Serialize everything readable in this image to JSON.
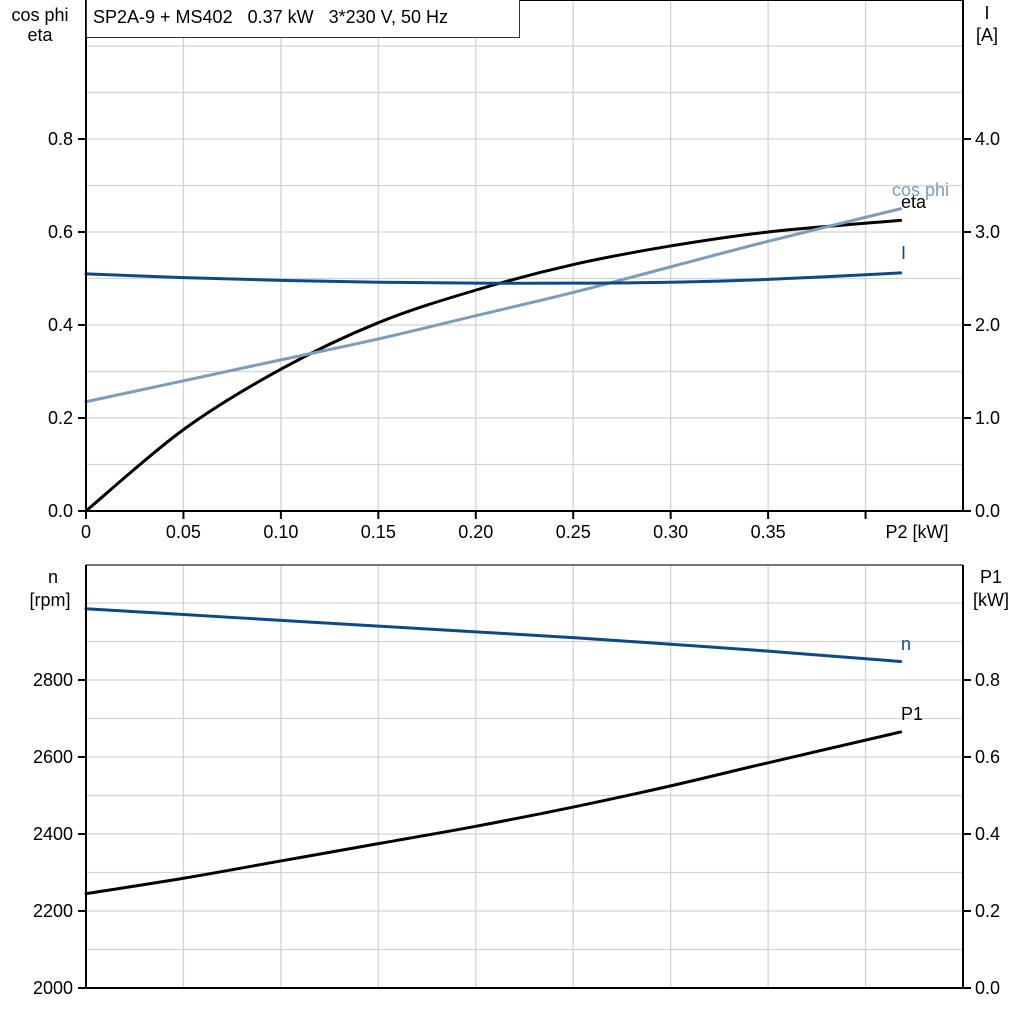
{
  "title": "SP2A-9 + MS402   0.37 kW   3*230 V, 50 Hz",
  "top_chart": {
    "left_axis_label_line1": "cos phi",
    "left_axis_label_line2": "eta",
    "right_axis_label_line1": "I",
    "right_axis_label_line2": "[A]",
    "x_axis_label": "P2 [kW]",
    "x_ticks": [
      "0",
      "0.05",
      "0.10",
      "0.15",
      "0.20",
      "0.25",
      "0.30",
      "0.35"
    ],
    "left_ticks": [
      "0.0",
      "0.2",
      "0.4",
      "0.6",
      "0.8"
    ],
    "right_ticks": [
      "0.0",
      "1.0",
      "2.0",
      "3.0",
      "4.0"
    ],
    "curve_labels": {
      "cosphi": "cos phi",
      "eta": "eta",
      "I": "I"
    }
  },
  "bottom_chart": {
    "left_axis_label_line1": "n",
    "left_axis_label_line2": "[rpm]",
    "right_axis_label_line1": "P1",
    "right_axis_label_line2": "[kW]",
    "left_ticks": [
      "2000",
      "2200",
      "2400",
      "2600",
      "2800"
    ],
    "right_ticks": [
      "0.0",
      "0.2",
      "0.4",
      "0.6",
      "0.8"
    ],
    "curve_labels": {
      "n": "n",
      "P1": "P1"
    }
  },
  "colors": {
    "eta": "#000000",
    "cosphi": "#7a9cbf",
    "I": "#0d4a85",
    "n": "#0d4a85",
    "P1": "#000000",
    "grid": "#d3d3d3"
  },
  "chart_data": [
    {
      "type": "line",
      "title": "SP2A-9 + MS402   0.37 kW   3*230 V, 50 Hz",
      "xlabel": "P2 [kW]",
      "ylabel": "cos phi / eta",
      "y2label": "I [A]",
      "xlim": [
        0,
        0.45
      ],
      "ylim": [
        0,
        1.1
      ],
      "y2lim": [
        0,
        5.5
      ],
      "grid": true,
      "x": [
        0,
        0.05,
        0.1,
        0.15,
        0.2,
        0.25,
        0.3,
        0.35,
        0.418
      ],
      "series": [
        {
          "name": "eta",
          "axis": "left",
          "values": [
            0.0,
            0.175,
            0.305,
            0.405,
            0.475,
            0.53,
            0.57,
            0.6,
            0.625
          ]
        },
        {
          "name": "cos phi",
          "axis": "left",
          "values": [
            0.235,
            0.28,
            0.325,
            0.37,
            0.42,
            0.47,
            0.525,
            0.58,
            0.65
          ]
        },
        {
          "name": "I",
          "axis": "right",
          "values": [
            2.55,
            2.51,
            2.48,
            2.46,
            2.45,
            2.45,
            2.46,
            2.49,
            2.56
          ]
        }
      ]
    },
    {
      "type": "line",
      "xlabel": "P2 [kW]",
      "ylabel": "n [rpm]",
      "y2label": "P1 [kW]",
      "xlim": [
        0,
        0.45
      ],
      "ylim": [
        2000,
        3100
      ],
      "y2lim": [
        0,
        1.1
      ],
      "grid": true,
      "x": [
        0,
        0.05,
        0.1,
        0.15,
        0.2,
        0.25,
        0.3,
        0.35,
        0.418
      ],
      "series": [
        {
          "name": "n",
          "axis": "left",
          "values": [
            2985,
            2970,
            2955,
            2940,
            2925,
            2910,
            2893,
            2875,
            2848
          ]
        },
        {
          "name": "P1",
          "axis": "right",
          "values": [
            0.245,
            0.285,
            0.33,
            0.375,
            0.42,
            0.47,
            0.525,
            0.585,
            0.665
          ]
        }
      ]
    }
  ]
}
